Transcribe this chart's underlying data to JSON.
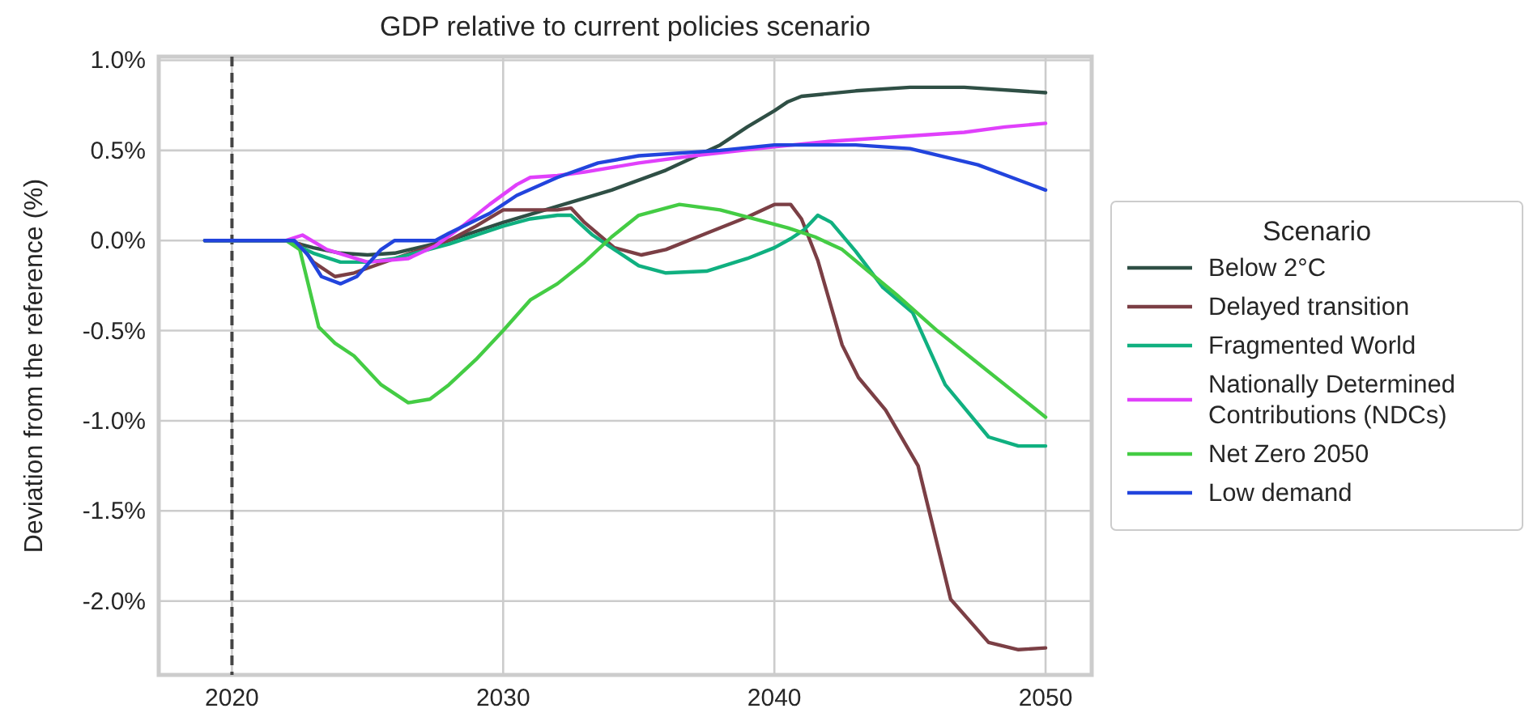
{
  "chart_data": {
    "type": "line",
    "title": "GDP relative to current policies scenario",
    "ylabel": "Deviation from the reference (%)",
    "legend_title": "Scenario",
    "legend": "right",
    "grid": true,
    "line_style": "solid",
    "xlim": [
      2017.3,
      2051.7
    ],
    "xticks": [
      2020,
      2030,
      2040,
      2050
    ],
    "ylim": [
      -2.41,
      1.02
    ],
    "yticks": [
      {
        "value": -2.0,
        "label": "-2.0%"
      },
      {
        "value": -1.5,
        "label": "-1.5%"
      },
      {
        "value": -1.0,
        "label": "-1.0%"
      },
      {
        "value": -0.5,
        "label": "-0.5%"
      },
      {
        "value": 0,
        "label": "0.0%"
      },
      {
        "value": 0.5,
        "label": "0.5%"
      },
      {
        "value": 1.0,
        "label": "1.0%"
      }
    ],
    "ref_lines": [
      {
        "axis": "x",
        "value": 2020,
        "color": "#444444",
        "line_style": "dashed"
      }
    ],
    "series": [
      {
        "name": "Below 2°C",
        "color": "#2f4f45",
        "x": [
          2019,
          2022,
          2023,
          2024,
          2025,
          2026,
          2028,
          2030,
          2032,
          2034,
          2036,
          2038,
          2039,
          2040,
          2040.5,
          2041,
          2043,
          2045,
          2047,
          2049,
          2050
        ],
        "values": [
          0,
          0,
          -0.04,
          -0.07,
          -0.08,
          -0.07,
          0,
          0.1,
          0.19,
          0.28,
          0.39,
          0.53,
          0.63,
          0.72,
          0.77,
          0.8,
          0.83,
          0.85,
          0.85,
          0.83,
          0.82
        ]
      },
      {
        "name": "Delayed transition",
        "color": "#7b3f45",
        "x": [
          2019,
          2022,
          2022.5,
          2023,
          2023.8,
          2024.5,
          2026,
          2028,
          2029,
          2030,
          2031,
          2032,
          2032.5,
          2033,
          2034.1,
          2035.1,
          2036,
          2037.5,
          2039,
          2040,
          2040.6,
          2041,
          2041.6,
          2042.5,
          2043.1,
          2044.1,
          2045.3,
          2046.5,
          2047.9,
          2049,
          2050
        ],
        "values": [
          0,
          0,
          -0.02,
          -0.12,
          -0.2,
          -0.18,
          -0.1,
          0,
          0.08,
          0.17,
          0.17,
          0.17,
          0.18,
          0.1,
          -0.04,
          -0.08,
          -0.05,
          0.04,
          0.13,
          0.2,
          0.2,
          0.12,
          -0.11,
          -0.58,
          -0.76,
          -0.94,
          -1.25,
          -1.99,
          -2.23,
          -2.27,
          -2.26
        ]
      },
      {
        "name": "Fragmented World",
        "color": "#10b080",
        "x": [
          2019,
          2022,
          2023,
          2024,
          2025,
          2026,
          2028,
          2030,
          2031,
          2032,
          2032.5,
          2033.3,
          2034.1,
          2035,
          2036,
          2037.5,
          2039,
          2040,
          2040.6,
          2041.1,
          2041.6,
          2042.1,
          2043,
          2044,
          2045.1,
          2046.3,
          2047.9,
          2049,
          2050
        ],
        "values": [
          0,
          0,
          -0.07,
          -0.12,
          -0.12,
          -0.1,
          -0.02,
          0.08,
          0.12,
          0.14,
          0.14,
          0.03,
          -0.05,
          -0.14,
          -0.18,
          -0.17,
          -0.1,
          -0.04,
          0.01,
          0.06,
          0.14,
          0.1,
          -0.06,
          -0.26,
          -0.4,
          -0.8,
          -1.09,
          -1.14,
          -1.14
        ]
      },
      {
        "name": "Nationally Determined\nContributions (NDCs)",
        "color": "#e040fb",
        "x": [
          2019,
          2022,
          2022.6,
          2023.5,
          2025,
          2026.5,
          2027.5,
          2028.5,
          2029.5,
          2030.5,
          2031,
          2032,
          2033,
          2035,
          2037,
          2040,
          2042,
          2045,
          2047,
          2048.5,
          2050
        ],
        "values": [
          0,
          0,
          0.03,
          -0.05,
          -0.12,
          -0.1,
          -0.03,
          0.08,
          0.2,
          0.31,
          0.35,
          0.36,
          0.38,
          0.43,
          0.47,
          0.52,
          0.55,
          0.58,
          0.6,
          0.63,
          0.65
        ]
      },
      {
        "name": "Net Zero 2050",
        "color": "#44cc44",
        "x": [
          2019,
          2022,
          2022.5,
          2023.2,
          2023.8,
          2024.5,
          2025.5,
          2026.5,
          2027.3,
          2028,
          2029,
          2030,
          2031,
          2032,
          2033,
          2034,
          2035,
          2036.5,
          2038,
          2039.5,
          2040.5,
          2041.5,
          2042.5,
          2043.7,
          2044.5,
          2046,
          2048,
          2050
        ],
        "values": [
          0,
          0,
          -0.05,
          -0.48,
          -0.57,
          -0.64,
          -0.8,
          -0.9,
          -0.88,
          -0.8,
          -0.66,
          -0.5,
          -0.33,
          -0.24,
          -0.12,
          0.02,
          0.14,
          0.2,
          0.17,
          0.11,
          0.07,
          0.02,
          -0.05,
          -0.2,
          -0.3,
          -0.5,
          -0.74,
          -0.98
        ]
      },
      {
        "name": "Low demand",
        "color": "#2244dd",
        "x": [
          2019,
          2022.3,
          2022.8,
          2023.3,
          2024,
          2024.6,
          2025.5,
          2026,
          2027,
          2027.5,
          2028,
          2029.5,
          2030.5,
          2032,
          2033.5,
          2035,
          2038,
          2040,
          2043,
          2045,
          2047.5,
          2050
        ],
        "values": [
          0,
          0,
          -0.08,
          -0.2,
          -0.24,
          -0.2,
          -0.05,
          0,
          0,
          0,
          0.04,
          0.15,
          0.25,
          0.35,
          0.43,
          0.47,
          0.5,
          0.53,
          0.53,
          0.51,
          0.42,
          0.28
        ]
      }
    ]
  }
}
